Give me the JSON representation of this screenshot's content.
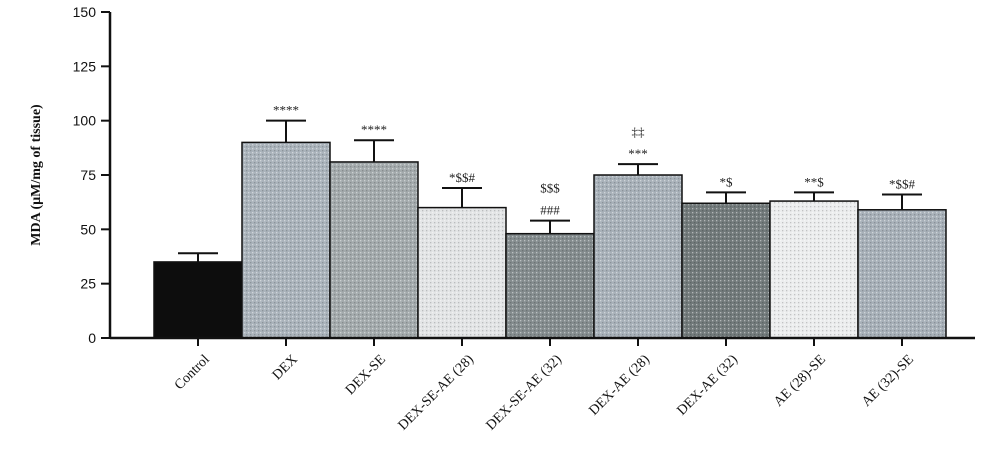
{
  "chart_data": {
    "type": "bar",
    "title": "",
    "xlabel": "",
    "ylabel": "MDA (µM/mg of tissue)",
    "ylim": [
      0,
      150
    ],
    "yticks": [
      0,
      25,
      50,
      75,
      100,
      125,
      150
    ],
    "grid": false,
    "legend": "none",
    "categories": [
      "Control",
      "DEX",
      "DEX-SE",
      "DEX-SE-AE (28)",
      "DEX-SE-AE (32)",
      "DEX-AE (28)",
      "DEX-AE (32)",
      "AE (28)-SE",
      "AE (32)-SE"
    ],
    "values": [
      35,
      90,
      81,
      60,
      48,
      75,
      62,
      63,
      59
    ],
    "errors": [
      4,
      10,
      10,
      9,
      6,
      5,
      5,
      4,
      7
    ],
    "annotations": [
      [],
      [
        "****"
      ],
      [
        "****"
      ],
      [
        "*$$#"
      ],
      [
        "###",
        "$$$"
      ],
      [
        "***",
        "‡‡"
      ],
      [
        "*$"
      ],
      [
        "**$"
      ],
      [
        "*$$#"
      ]
    ],
    "colors": [
      "#0d0d0d",
      "#aab3bb",
      "#a3aaac",
      "#e3e5e6",
      "#848c8e",
      "#a8b1b9",
      "#727a7b",
      "#ecedee",
      "#a7b0b8"
    ]
  }
}
